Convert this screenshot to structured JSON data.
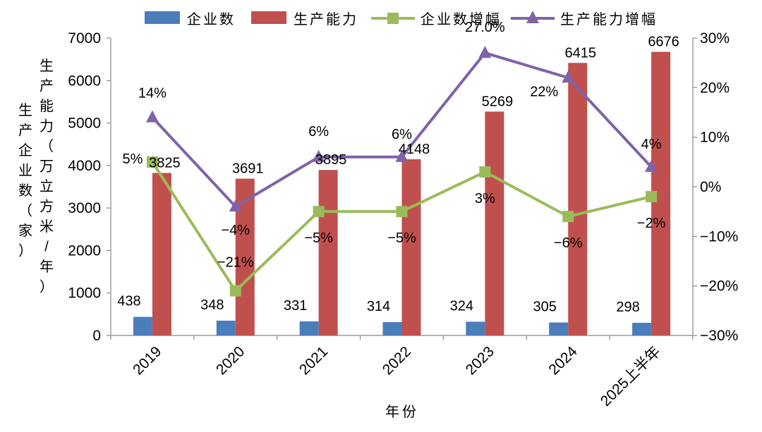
{
  "chart_data": {
    "type": "bar",
    "categories": [
      "2019",
      "2020",
      "2021",
      "2022",
      "2023",
      "2024",
      "2025上半年"
    ],
    "series": [
      {
        "name": "企业数",
        "kind": "bar",
        "axis": "left",
        "color": "#4a7ebb",
        "values": [
          438,
          348,
          331,
          314,
          324,
          305,
          298
        ],
        "labels": [
          "438",
          "348",
          "331",
          "314",
          "324",
          "305",
          "298"
        ]
      },
      {
        "name": "生产能力",
        "kind": "bar",
        "axis": "left",
        "color": "#c0504d",
        "values": [
          3825,
          3691,
          3895,
          4148,
          5269,
          6415,
          6676
        ],
        "labels": [
          "3825",
          "3691",
          "3895",
          "4148",
          "5269",
          "6415",
          "6676"
        ]
      },
      {
        "name": "企业数增幅",
        "kind": "line",
        "axis": "right",
        "color": "#9bbb59",
        "values": [
          5,
          -21,
          -5,
          -5,
          3,
          -6,
          -2
        ],
        "labels": [
          "5%",
          "−21%",
          "−5%",
          "−5%",
          "3%",
          "−6%",
          "−2%"
        ]
      },
      {
        "name": "生产能力增幅",
        "kind": "line",
        "axis": "right",
        "color": "#7f63a8",
        "values": [
          14,
          -4,
          6,
          6,
          27,
          22,
          4
        ],
        "labels": [
          "14%",
          "−4%",
          "6%",
          "6%",
          "27.0%",
          "22%",
          "4%"
        ]
      }
    ],
    "xlabel": "年份",
    "ylabel_left_1": "生产企业数（家）",
    "ylabel_left_2": "生产能力（万立方米/年）",
    "ylim_left": [
      0,
      7000
    ],
    "yticks_left": [
      "0",
      "1000",
      "2000",
      "3000",
      "4000",
      "5000",
      "6000",
      "7000"
    ],
    "ylim_right": [
      -30,
      30
    ],
    "yticks_right": [
      "−30%",
      "−20%",
      "−10%",
      "0%",
      "10%",
      "20%",
      "30%"
    ],
    "legend_position": "top",
    "grid": false
  }
}
